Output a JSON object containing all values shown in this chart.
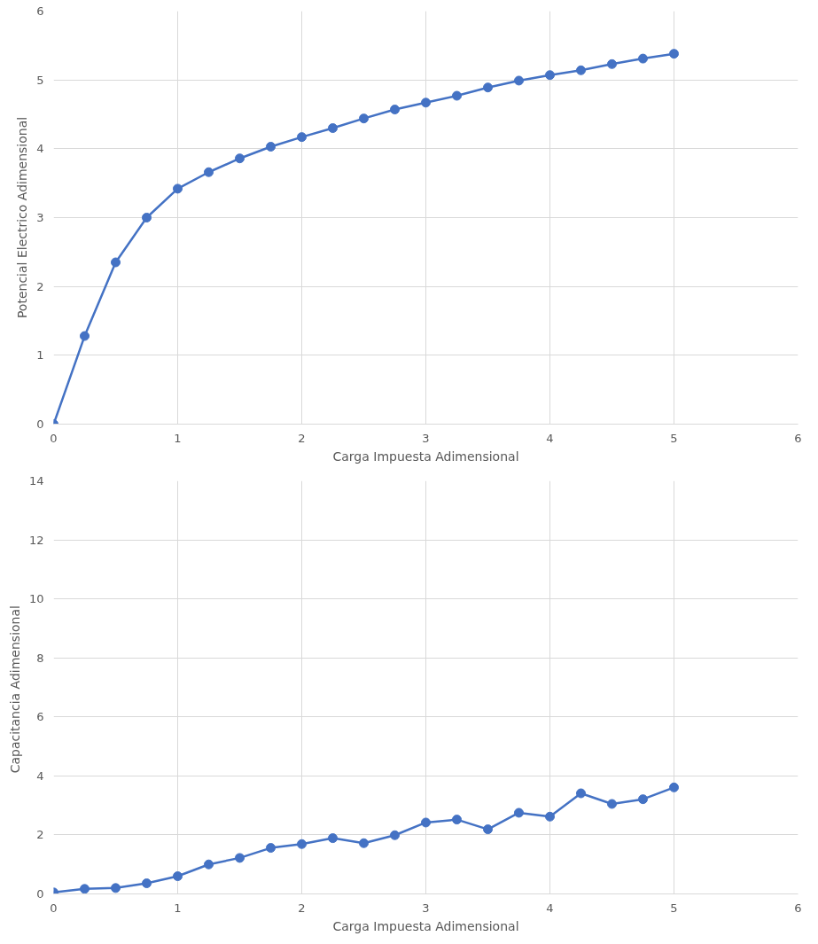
{
  "chart_data": [
    {
      "type": "line",
      "xlabel": "Carga Impuesta Adimensional",
      "ylabel": "Potencial Electrico Adimensional",
      "x": [
        0,
        0.25,
        0.5,
        0.75,
        1,
        1.25,
        1.5,
        1.75,
        2,
        2.25,
        2.5,
        2.75,
        3,
        3.25,
        3.5,
        3.75,
        4,
        4.25,
        4.5,
        4.75,
        5
      ],
      "series": [
        {
          "color": "#4472c4",
          "values": [
            0,
            1.28,
            2.35,
            3.0,
            3.42,
            3.66,
            3.86,
            4.03,
            4.17,
            4.3,
            4.44,
            4.57,
            4.67,
            4.77,
            4.89,
            4.99,
            5.07,
            5.14,
            5.23,
            5.31,
            5.38
          ]
        }
      ],
      "xlim": [
        0,
        6
      ],
      "xticks": [
        0,
        1,
        2,
        3,
        4,
        5,
        6
      ],
      "ylim": [
        0,
        6
      ],
      "yticks": [
        0,
        1,
        2,
        3,
        4,
        5,
        6
      ],
      "grid": true,
      "marker": "circle",
      "line_style": "solid"
    },
    {
      "type": "line",
      "xlabel": "Carga Impuesta Adimensional",
      "ylabel": "Capacitancia  Adimensional",
      "x": [
        0,
        0.25,
        0.5,
        0.75,
        1,
        1.25,
        1.5,
        1.75,
        2,
        2.25,
        2.5,
        2.75,
        3,
        3.25,
        3.5,
        3.75,
        4,
        4.25,
        4.5,
        4.75,
        5
      ],
      "series": [
        {
          "color": "#4472c4",
          "values": [
            0.05,
            0.17,
            0.2,
            0.36,
            0.6,
            1.0,
            1.22,
            1.56,
            1.69,
            1.89,
            1.72,
            1.99,
            2.42,
            2.52,
            2.19,
            2.75,
            2.62,
            3.41,
            3.05,
            3.21,
            3.61
          ]
        }
      ],
      "xlim": [
        0,
        6
      ],
      "xticks": [
        0,
        1,
        2,
        3,
        4,
        5,
        6
      ],
      "ylim": [
        0,
        14
      ],
      "yticks": [
        0,
        2,
        4,
        6,
        8,
        10,
        12,
        14
      ],
      "grid": true,
      "marker": "circle",
      "line_style": "solid"
    }
  ]
}
